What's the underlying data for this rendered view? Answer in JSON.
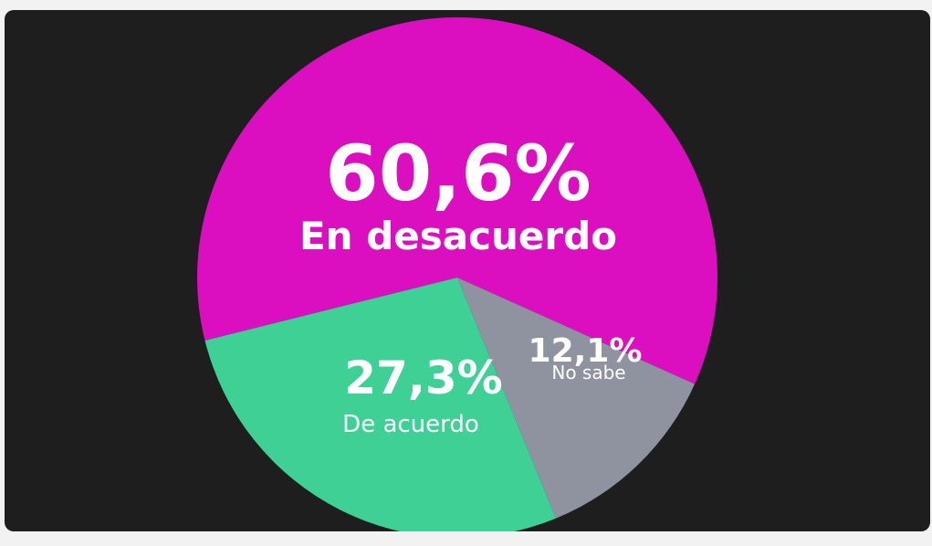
{
  "chart_data": {
    "type": "pie",
    "slices": [
      {
        "label": "En desacuerdo",
        "value": 60.6,
        "value_text": "60,6%",
        "color": "#dc0fc0"
      },
      {
        "label": "No sabe",
        "value": 12.1,
        "value_text": "12,1%",
        "color": "#8f93a0"
      },
      {
        "label": "De acuerdo",
        "value": 27.3,
        "value_text": "27,3%",
        "color": "#3fd096"
      }
    ],
    "background": "#1e1e1e"
  }
}
